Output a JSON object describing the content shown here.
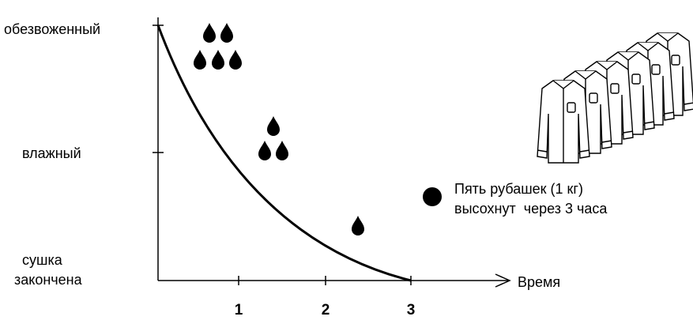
{
  "y_axis": {
    "labels": [
      "обезвоженный",
      "влажный",
      [
        "сушка",
        "закончена"
      ]
    ]
  },
  "x_axis": {
    "label": "Время",
    "ticks": [
      1,
      2,
      3
    ]
  },
  "note": [
    "Пять рубашек (1 кг)",
    "высохнут  через 3 часа"
  ]
}
